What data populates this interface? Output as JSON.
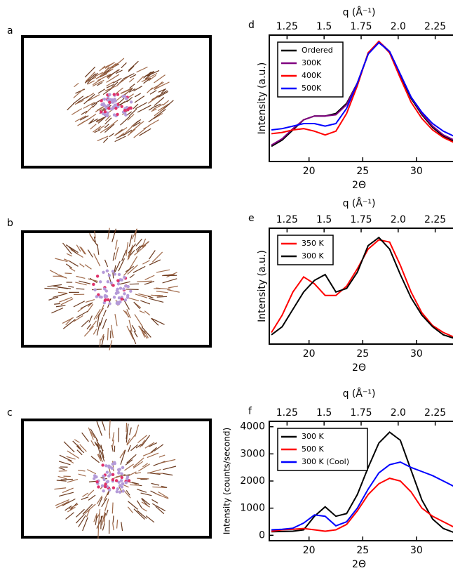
{
  "panel_labels": [
    "a",
    "b",
    "c"
  ],
  "chart_data": [
    {
      "type": "line",
      "label": "d",
      "xlabel": "2Θ",
      "x2label": "q (Å⁻¹)",
      "ylabel": "Intensity (a.u.)",
      "xlim": [
        16.3,
        33.4
      ],
      "xticks": [
        20,
        25,
        30
      ],
      "x2lim": [
        1.13,
        2.37
      ],
      "x2ticks": [
        1.25,
        1.5,
        1.75,
        {
          "value": 2.0,
          "label": "2.0"
        },
        2.25
      ],
      "ylim": [
        0,
        1
      ],
      "legend": "upper left",
      "x": [
        16.5,
        17.5,
        18.5,
        19.5,
        20.5,
        21.5,
        22.5,
        23.5,
        24.5,
        25.5,
        26.5,
        27.5,
        28.5,
        29.5,
        30.5,
        31.5,
        32.5,
        33.5
      ],
      "series": [
        {
          "name": "Ordered",
          "color": "#000000",
          "values": [
            0.12,
            0.17,
            0.25,
            0.33,
            0.36,
            0.36,
            0.38,
            0.46,
            0.62,
            0.85,
            0.95,
            0.86,
            0.68,
            0.5,
            0.37,
            0.27,
            0.2,
            0.16
          ]
        },
        {
          "name": "300K",
          "color": "#800080",
          "values": [
            0.13,
            0.18,
            0.26,
            0.33,
            0.36,
            0.36,
            0.37,
            0.45,
            0.62,
            0.85,
            0.95,
            0.87,
            0.69,
            0.51,
            0.38,
            0.28,
            0.21,
            0.17
          ]
        },
        {
          "name": "400K",
          "color": "#ff0000",
          "values": [
            0.22,
            0.23,
            0.25,
            0.26,
            0.24,
            0.21,
            0.24,
            0.38,
            0.6,
            0.86,
            0.95,
            0.86,
            0.66,
            0.47,
            0.34,
            0.25,
            0.19,
            0.15
          ]
        },
        {
          "name": "500K",
          "color": "#0000ff",
          "values": [
            0.25,
            0.26,
            0.28,
            0.3,
            0.3,
            0.28,
            0.3,
            0.42,
            0.62,
            0.85,
            0.94,
            0.87,
            0.69,
            0.51,
            0.39,
            0.3,
            0.24,
            0.2
          ]
        }
      ]
    },
    {
      "type": "line",
      "label": "e",
      "xlabel": "2Θ",
      "x2label": "q (Å⁻¹)",
      "ylabel": "Intensity (a.u.)",
      "xlim": [
        16.3,
        33.4
      ],
      "xticks": [
        20,
        25,
        30
      ],
      "x2lim": [
        1.13,
        2.37
      ],
      "x2ticks": [
        1.25,
        1.5,
        1.75,
        {
          "value": 2.0,
          "label": "2.0"
        },
        2.25
      ],
      "ylim": [
        0,
        1
      ],
      "legend": "upper left",
      "x": [
        16.5,
        17.5,
        18.5,
        19.5,
        20.5,
        21.5,
        22.5,
        23.5,
        24.5,
        25.5,
        26.5,
        27.5,
        28.5,
        29.5,
        30.5,
        31.5,
        32.5,
        33.5
      ],
      "series": [
        {
          "name": "350 K",
          "color": "#ff0000",
          "values": [
            0.1,
            0.25,
            0.45,
            0.58,
            0.52,
            0.42,
            0.42,
            0.5,
            0.65,
            0.82,
            0.9,
            0.88,
            0.68,
            0.45,
            0.27,
            0.16,
            0.1,
            0.06
          ]
        },
        {
          "name": "300 K",
          "color": "#000000",
          "values": [
            0.08,
            0.15,
            0.3,
            0.45,
            0.55,
            0.6,
            0.45,
            0.48,
            0.62,
            0.85,
            0.92,
            0.82,
            0.6,
            0.4,
            0.25,
            0.15,
            0.08,
            0.05
          ]
        }
      ]
    },
    {
      "type": "line",
      "label": "f",
      "xlabel": "2Θ",
      "x2label": "q (Å⁻¹)",
      "ylabel": "Intensity (counts/second)",
      "xlim": [
        16.3,
        33.4
      ],
      "xticks": [
        20,
        25,
        30
      ],
      "x2lim": [
        1.13,
        2.37
      ],
      "x2ticks": [
        1.25,
        1.5,
        1.75,
        {
          "value": 2.0,
          "label": "2.0"
        },
        2.25
      ],
      "ylim": [
        -200,
        4200
      ],
      "yticks": [
        0,
        1000,
        2000,
        3000,
        4000
      ],
      "legend": "upper left",
      "x": [
        16.5,
        17.5,
        18.5,
        19.5,
        20.5,
        21.5,
        22.5,
        23.5,
        24.5,
        25.5,
        26.5,
        27.5,
        28.5,
        29.5,
        30.5,
        31.5,
        32.5,
        33.5
      ],
      "series": [
        {
          "name": "300 K",
          "color": "#000000",
          "values": [
            130,
            140,
            150,
            200,
            700,
            1050,
            700,
            800,
            1500,
            2500,
            3400,
            3800,
            3500,
            2400,
            1300,
            600,
            250,
            100
          ]
        },
        {
          "name": "500 K",
          "color": "#ff0000",
          "values": [
            150,
            200,
            220,
            250,
            200,
            150,
            200,
            400,
            900,
            1500,
            1900,
            2100,
            2000,
            1600,
            1000,
            700,
            500,
            300
          ]
        },
        {
          "name": "300 K (Cool)",
          "color": "#0000ff",
          "values": [
            200,
            220,
            260,
            450,
            750,
            700,
            350,
            500,
            1000,
            1700,
            2300,
            2600,
            2700,
            2500,
            2350,
            2200,
            2000,
            1800
          ]
        }
      ]
    }
  ]
}
